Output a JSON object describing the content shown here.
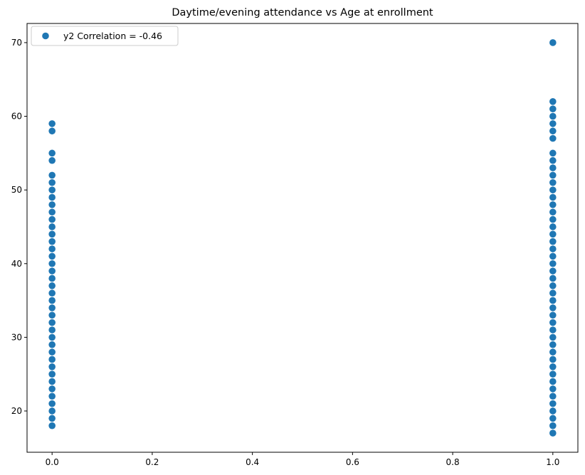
{
  "chart_data": {
    "type": "scatter",
    "title": "Daytime/evening attendance\t vs Age at enrollment",
    "xlabel": "",
    "ylabel": "",
    "xlim": [
      -0.05,
      1.05
    ],
    "ylim": [
      14.4,
      72.6
    ],
    "x_ticks": [
      0.0,
      0.2,
      0.4,
      0.6,
      0.8,
      1.0
    ],
    "x_tick_labels": [
      "0.0",
      "0.2",
      "0.4",
      "0.6",
      "0.8",
      "1.0"
    ],
    "y_ticks": [
      20,
      30,
      40,
      50,
      60,
      70
    ],
    "y_tick_labels": [
      "20",
      "30",
      "40",
      "50",
      "60",
      "70"
    ],
    "grid": false,
    "legend_position": "top-left",
    "series": [
      {
        "name": "y2 Correlation = -0.46",
        "color": "#1f77b4",
        "points": [
          [
            0,
            18
          ],
          [
            0,
            19
          ],
          [
            0,
            20
          ],
          [
            0,
            21
          ],
          [
            0,
            22
          ],
          [
            0,
            23
          ],
          [
            0,
            24
          ],
          [
            0,
            25
          ],
          [
            0,
            26
          ],
          [
            0,
            27
          ],
          [
            0,
            28
          ],
          [
            0,
            29
          ],
          [
            0,
            30
          ],
          [
            0,
            31
          ],
          [
            0,
            32
          ],
          [
            0,
            33
          ],
          [
            0,
            34
          ],
          [
            0,
            35
          ],
          [
            0,
            36
          ],
          [
            0,
            37
          ],
          [
            0,
            38
          ],
          [
            0,
            39
          ],
          [
            0,
            40
          ],
          [
            0,
            41
          ],
          [
            0,
            42
          ],
          [
            0,
            43
          ],
          [
            0,
            44
          ],
          [
            0,
            45
          ],
          [
            0,
            46
          ],
          [
            0,
            47
          ],
          [
            0,
            48
          ],
          [
            0,
            49
          ],
          [
            0,
            50
          ],
          [
            0,
            51
          ],
          [
            0,
            52
          ],
          [
            0,
            54
          ],
          [
            0,
            55
          ],
          [
            0,
            58
          ],
          [
            0,
            59
          ],
          [
            1,
            17
          ],
          [
            1,
            18
          ],
          [
            1,
            19
          ],
          [
            1,
            20
          ],
          [
            1,
            21
          ],
          [
            1,
            22
          ],
          [
            1,
            23
          ],
          [
            1,
            24
          ],
          [
            1,
            25
          ],
          [
            1,
            26
          ],
          [
            1,
            27
          ],
          [
            1,
            28
          ],
          [
            1,
            29
          ],
          [
            1,
            30
          ],
          [
            1,
            31
          ],
          [
            1,
            32
          ],
          [
            1,
            33
          ],
          [
            1,
            34
          ],
          [
            1,
            35
          ],
          [
            1,
            36
          ],
          [
            1,
            37
          ],
          [
            1,
            38
          ],
          [
            1,
            39
          ],
          [
            1,
            40
          ],
          [
            1,
            41
          ],
          [
            1,
            42
          ],
          [
            1,
            43
          ],
          [
            1,
            44
          ],
          [
            1,
            45
          ],
          [
            1,
            46
          ],
          [
            1,
            47
          ],
          [
            1,
            48
          ],
          [
            1,
            49
          ],
          [
            1,
            50
          ],
          [
            1,
            51
          ],
          [
            1,
            52
          ],
          [
            1,
            53
          ],
          [
            1,
            54
          ],
          [
            1,
            55
          ],
          [
            1,
            57
          ],
          [
            1,
            58
          ],
          [
            1,
            59
          ],
          [
            1,
            60
          ],
          [
            1,
            61
          ],
          [
            1,
            62
          ],
          [
            1,
            70
          ]
        ]
      }
    ]
  }
}
